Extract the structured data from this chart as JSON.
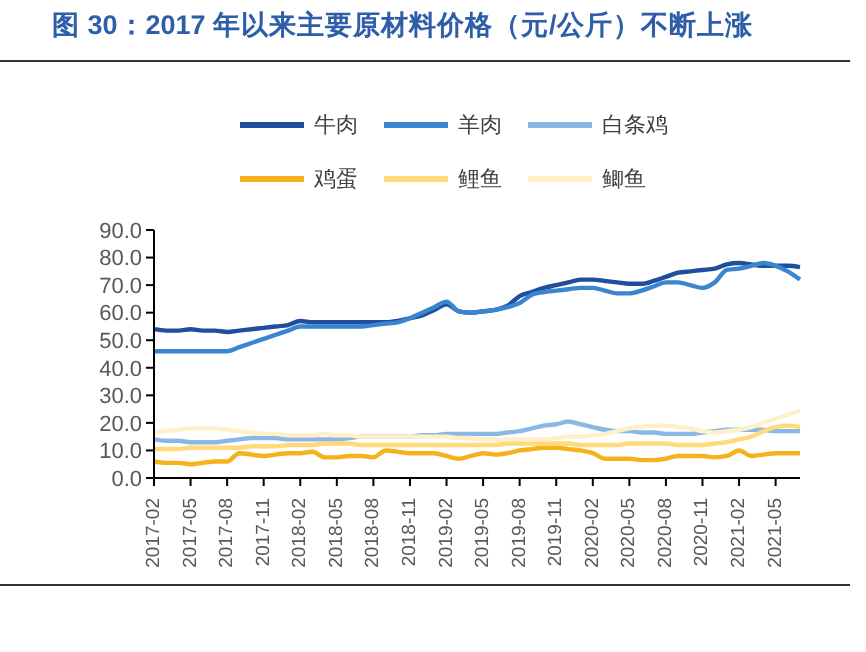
{
  "chart_data": {
    "type": "line",
    "title": "图 30：2017 年以来主要原材料价格（元/公斤）不断上涨",
    "categories": [
      "2017-02",
      null,
      null,
      "2017-05",
      null,
      null,
      "2017-08",
      null,
      null,
      "2017-11",
      null,
      null,
      "2018-02",
      null,
      null,
      "2018-05",
      null,
      null,
      "2018-08",
      null,
      null,
      "2018-11",
      null,
      null,
      "2019-02",
      null,
      null,
      "2019-05",
      null,
      null,
      "2019-08",
      null,
      null,
      "2019-11",
      null,
      null,
      "2020-02",
      null,
      null,
      "2020-05",
      null,
      null,
      "2020-08",
      null,
      null,
      "2020-11",
      null,
      null,
      "2021-02",
      null,
      null,
      "2021-05",
      null,
      null
    ],
    "series": [
      {
        "name": "牛肉",
        "color": "#1f4e9c",
        "values": [
          54,
          53.5,
          53.5,
          54,
          53.5,
          53.5,
          53,
          53.5,
          54,
          54.5,
          55,
          55.5,
          57,
          56.5,
          56.5,
          56.5,
          56.5,
          56.5,
          56.5,
          56.5,
          57,
          58,
          59,
          61,
          63,
          60.5,
          60,
          60.5,
          61,
          62.5,
          66,
          67.5,
          69,
          70,
          71,
          72,
          72,
          71.5,
          71,
          70.5,
          70.5,
          71.5,
          73,
          74.5,
          75,
          75.5,
          76,
          77.5,
          78,
          77.5,
          77,
          77,
          77,
          76.5
        ]
      },
      {
        "name": "羊肉",
        "color": "#3a85d0",
        "values": [
          46,
          46,
          46,
          46,
          46,
          46,
          46,
          47.5,
          49,
          50.5,
          52,
          53.5,
          55,
          55,
          55,
          55,
          55,
          55,
          55.5,
          56,
          56.5,
          58,
          60,
          62,
          64,
          60.5,
          60,
          60.5,
          61,
          62,
          63.5,
          66.5,
          67.5,
          68,
          68.5,
          69,
          69,
          68,
          67,
          67,
          68,
          69.5,
          71,
          71,
          70,
          69,
          71,
          75.5,
          76,
          77,
          78,
          77,
          75,
          72
        ]
      },
      {
        "name": "白条鸡",
        "color": "#8ab8e6",
        "values": [
          14,
          13.5,
          13.5,
          13,
          13,
          13,
          13.5,
          14,
          14.5,
          14.5,
          14.5,
          14,
          14,
          14,
          14,
          14,
          14.5,
          15,
          15,
          15,
          15,
          15,
          15.5,
          15.5,
          16,
          16,
          16,
          16,
          16,
          16.5,
          17,
          18,
          19,
          19.5,
          20.5,
          19.5,
          18.5,
          17.5,
          17,
          17,
          16.5,
          16.5,
          16,
          16,
          16,
          16.5,
          17,
          17.5,
          17.5,
          17.5,
          17.5,
          17,
          17,
          17
        ]
      },
      {
        "name": "鸡蛋",
        "color": "#f5b21a",
        "values": [
          6,
          5.5,
          5.5,
          5,
          5.5,
          6,
          6,
          9,
          8.5,
          8,
          8.5,
          9,
          9,
          9.5,
          7.5,
          7.5,
          8,
          8,
          7.5,
          10,
          9.5,
          9,
          9,
          9,
          8,
          7,
          8,
          9,
          8.5,
          9,
          10,
          10.5,
          11,
          11,
          10.5,
          10,
          9,
          7,
          7,
          7,
          6.5,
          6.5,
          7,
          8,
          8,
          8,
          7.5,
          8,
          10,
          8,
          8.5,
          9,
          9,
          9
        ]
      },
      {
        "name": "鲤鱼",
        "color": "#ffd97a",
        "values": [
          10.5,
          10.5,
          10.5,
          11,
          11,
          11,
          11,
          11,
          11.5,
          11.5,
          11.5,
          12,
          12,
          12,
          12.5,
          12.5,
          12.5,
          12,
          12,
          12,
          12,
          12,
          12,
          12,
          12,
          12,
          12,
          12,
          12,
          12.5,
          12.5,
          12.5,
          12.5,
          12.5,
          12.5,
          12,
          12,
          12,
          12,
          12.5,
          12.5,
          12.5,
          12.5,
          12,
          12,
          12,
          12.5,
          13,
          14,
          15,
          17,
          18.5,
          19,
          18.5
        ]
      },
      {
        "name": "鲫鱼",
        "color": "#fff0c8",
        "values": [
          16.5,
          17,
          17.5,
          18,
          18,
          18,
          17.5,
          17,
          16.5,
          16,
          16,
          15.5,
          15.5,
          15.5,
          16,
          15.5,
          15.5,
          15,
          15,
          15,
          15,
          15,
          15,
          15,
          15,
          14.5,
          14.5,
          14,
          14,
          14,
          14,
          14,
          14,
          14.5,
          15,
          15,
          15.5,
          16,
          17,
          18,
          18.5,
          19,
          19,
          18.5,
          18,
          17,
          16.5,
          17,
          17.5,
          18.5,
          20,
          21.5,
          23,
          24.5
        ]
      }
    ],
    "ylim": [
      0,
      90
    ],
    "yticks": [
      {
        "value": 0,
        "label": "0.0"
      },
      {
        "value": 10,
        "label": "10.0"
      },
      {
        "value": 20,
        "label": "20.0"
      },
      {
        "value": 30,
        "label": "30.0"
      },
      {
        "value": 40,
        "label": "40.0"
      },
      {
        "value": 50,
        "label": "50.0"
      },
      {
        "value": 60,
        "label": "60.0"
      },
      {
        "value": 70,
        "label": "70.0"
      },
      {
        "value": 80,
        "label": "80.0"
      },
      {
        "value": 90,
        "label": "90.0"
      }
    ],
    "legend": "top",
    "marker": "none",
    "line_style": "solid"
  }
}
